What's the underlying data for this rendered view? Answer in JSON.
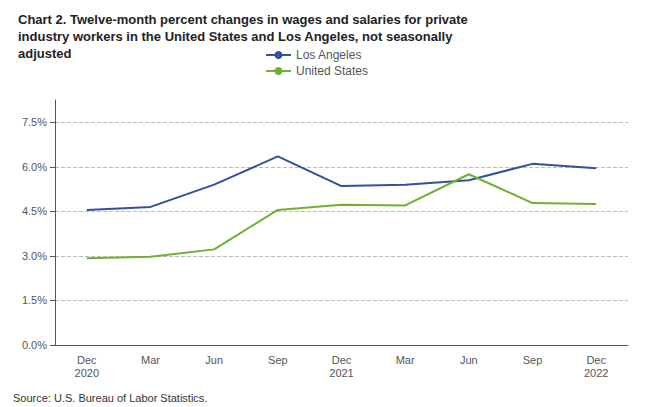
{
  "chart_data": {
    "type": "line",
    "title": "Chart 2. Twelve-month percent changes in wages and salaries for private\nindustry workers in the United States and Los Angeles, not seasonally\nadjusted",
    "annotations": [
      "Source: U.S. Bureau of Labor Statistics."
    ],
    "categories": [
      "Dec\n2020",
      "Mar",
      "Jun",
      "Sep",
      "Dec\n2021",
      "Mar",
      "Jun",
      "Sep",
      "Dec\n2022"
    ],
    "series": [
      {
        "name": "Los Angeles",
        "color": "#334fa0",
        "values": [
          4.55,
          4.65,
          5.4,
          6.35,
          5.35,
          5.4,
          5.55,
          6.1,
          5.95
        ]
      },
      {
        "name": "United States",
        "color": "#70b030",
        "values": [
          2.92,
          2.97,
          3.22,
          4.55,
          4.72,
          4.7,
          5.75,
          4.78,
          4.75
        ]
      }
    ],
    "ylim": [
      0.0,
      8.25
    ],
    "yticks": [
      {
        "value": 0.0,
        "label": "0.0%"
      },
      {
        "value": 1.5,
        "label": "1.5%"
      },
      {
        "value": 3.0,
        "label": "3.0%"
      },
      {
        "value": 4.5,
        "label": "4.5%"
      },
      {
        "value": 6.0,
        "label": "6.0%"
      },
      {
        "value": 7.5,
        "label": "7.5%"
      }
    ],
    "grid": true,
    "legend": "top"
  }
}
